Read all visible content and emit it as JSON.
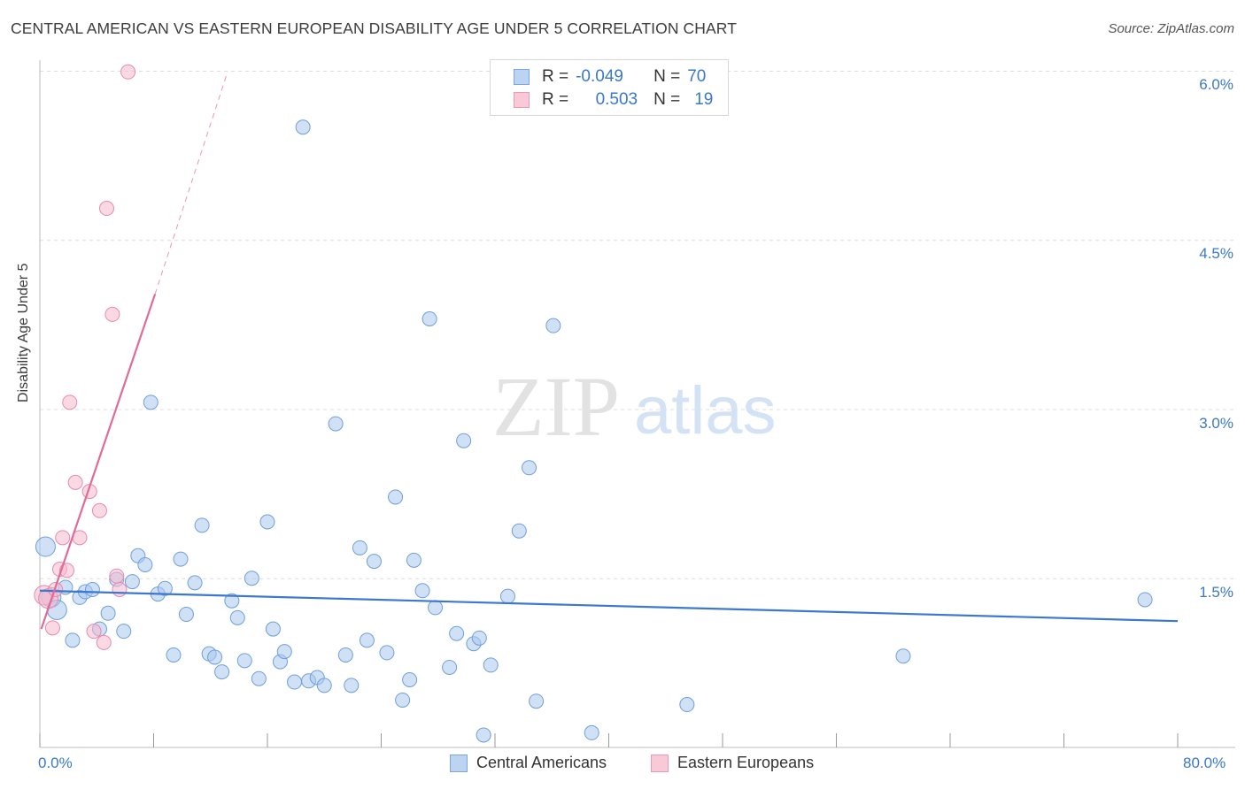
{
  "title": "CENTRAL AMERICAN VS EASTERN EUROPEAN DISABILITY AGE UNDER 5 CORRELATION CHART",
  "source": "Source: ZipAtlas.com",
  "watermark": {
    "zip": "ZIP",
    "atlas": "atlas"
  },
  "legend": {
    "r_label": "R =",
    "n_label": "N =",
    "rows": [
      {
        "r": "-0.049",
        "n": "70"
      },
      {
        "r": "0.503",
        "n": "19"
      }
    ]
  },
  "colors": {
    "blue_fill": "#a9c8ee",
    "blue_stroke": "#6f9fd8",
    "blue_line": "#3c78d0",
    "pink_fill": "#f6b9cd",
    "pink_stroke": "#e88aab",
    "pink_line": "#e06a98",
    "grid": "#dcdcdc",
    "axis_text": "#3a78c9"
  },
  "chart_data": {
    "type": "scatter",
    "title": "CENTRAL AMERICAN VS EASTERN EUROPEAN DISABILITY AGE UNDER 5 CORRELATION CHART",
    "xlabel": "",
    "ylabel": "Disability Age Under 5",
    "xlim": [
      0,
      80
    ],
    "ylim": [
      0,
      6.0
    ],
    "x_tick_labels": [
      "0.0%",
      "80.0%"
    ],
    "y_ticks": [
      1.5,
      3.0,
      4.5,
      6.0
    ],
    "y_tick_labels": [
      "1.5%",
      "3.0%",
      "4.5%",
      "6.0%"
    ],
    "grid": true,
    "legend_position": "bottom",
    "series": [
      {
        "name": "Central Americans",
        "color": "#a9c8ee",
        "r": -0.049,
        "n": 70,
        "trend": {
          "x": [
            0,
            80
          ],
          "y": [
            1.39,
            1.12
          ]
        },
        "points": [
          {
            "x": 0.4,
            "y": 1.78,
            "s": 2
          },
          {
            "x": 0.8,
            "y": 1.33,
            "s": 2
          },
          {
            "x": 1.2,
            "y": 1.22,
            "s": 2
          },
          {
            "x": 1.8,
            "y": 1.42,
            "s": 1
          },
          {
            "x": 2.3,
            "y": 0.95,
            "s": 1
          },
          {
            "x": 2.8,
            "y": 1.33,
            "s": 1
          },
          {
            "x": 3.2,
            "y": 1.38,
            "s": 1
          },
          {
            "x": 3.7,
            "y": 1.4,
            "s": 1
          },
          {
            "x": 4.2,
            "y": 1.05,
            "s": 1
          },
          {
            "x": 4.8,
            "y": 1.19,
            "s": 1
          },
          {
            "x": 5.4,
            "y": 1.49,
            "s": 1
          },
          {
            "x": 5.9,
            "y": 1.03,
            "s": 1
          },
          {
            "x": 6.5,
            "y": 1.47,
            "s": 1
          },
          {
            "x": 6.9,
            "y": 1.7,
            "s": 1
          },
          {
            "x": 7.4,
            "y": 1.62,
            "s": 1
          },
          {
            "x": 7.8,
            "y": 3.06,
            "s": 1
          },
          {
            "x": 8.3,
            "y": 1.36,
            "s": 1
          },
          {
            "x": 8.8,
            "y": 1.41,
            "s": 1
          },
          {
            "x": 9.4,
            "y": 0.82,
            "s": 1
          },
          {
            "x": 9.9,
            "y": 1.67,
            "s": 1
          },
          {
            "x": 10.3,
            "y": 1.18,
            "s": 1
          },
          {
            "x": 10.9,
            "y": 1.46,
            "s": 1
          },
          {
            "x": 11.4,
            "y": 1.97,
            "s": 1
          },
          {
            "x": 11.9,
            "y": 0.83,
            "s": 1
          },
          {
            "x": 12.3,
            "y": 0.8,
            "s": 1
          },
          {
            "x": 12.8,
            "y": 0.67,
            "s": 1
          },
          {
            "x": 13.5,
            "y": 1.3,
            "s": 1
          },
          {
            "x": 13.9,
            "y": 1.15,
            "s": 1
          },
          {
            "x": 14.4,
            "y": 0.77,
            "s": 1
          },
          {
            "x": 14.9,
            "y": 1.5,
            "s": 1
          },
          {
            "x": 15.4,
            "y": 0.61,
            "s": 1
          },
          {
            "x": 16.0,
            "y": 2.0,
            "s": 1
          },
          {
            "x": 16.4,
            "y": 1.05,
            "s": 1
          },
          {
            "x": 16.9,
            "y": 0.76,
            "s": 1
          },
          {
            "x": 17.2,
            "y": 0.85,
            "s": 1
          },
          {
            "x": 17.9,
            "y": 0.58,
            "s": 1
          },
          {
            "x": 18.5,
            "y": 5.5,
            "s": 1
          },
          {
            "x": 18.9,
            "y": 0.59,
            "s": 1
          },
          {
            "x": 19.5,
            "y": 0.62,
            "s": 1
          },
          {
            "x": 20.0,
            "y": 0.55,
            "s": 1
          },
          {
            "x": 20.8,
            "y": 2.87,
            "s": 1
          },
          {
            "x": 21.5,
            "y": 0.82,
            "s": 1
          },
          {
            "x": 21.9,
            "y": 0.55,
            "s": 1
          },
          {
            "x": 22.5,
            "y": 1.77,
            "s": 1
          },
          {
            "x": 23.0,
            "y": 0.95,
            "s": 1
          },
          {
            "x": 23.5,
            "y": 1.65,
            "s": 1
          },
          {
            "x": 24.4,
            "y": 0.84,
            "s": 1
          },
          {
            "x": 25.0,
            "y": 2.22,
            "s": 1
          },
          {
            "x": 25.5,
            "y": 0.42,
            "s": 1
          },
          {
            "x": 26.0,
            "y": 0.6,
            "s": 1
          },
          {
            "x": 26.3,
            "y": 1.66,
            "s": 1
          },
          {
            "x": 26.9,
            "y": 1.39,
            "s": 1
          },
          {
            "x": 27.4,
            "y": 3.8,
            "s": 1
          },
          {
            "x": 27.8,
            "y": 1.24,
            "s": 1
          },
          {
            "x": 28.8,
            "y": 0.71,
            "s": 1
          },
          {
            "x": 29.3,
            "y": 1.01,
            "s": 1
          },
          {
            "x": 29.8,
            "y": 2.72,
            "s": 1
          },
          {
            "x": 30.5,
            "y": 0.92,
            "s": 1
          },
          {
            "x": 30.9,
            "y": 0.97,
            "s": 1
          },
          {
            "x": 31.2,
            "y": 0.11,
            "s": 1
          },
          {
            "x": 31.7,
            "y": 0.73,
            "s": 1
          },
          {
            "x": 32.9,
            "y": 1.34,
            "s": 1
          },
          {
            "x": 33.7,
            "y": 1.92,
            "s": 1
          },
          {
            "x": 34.4,
            "y": 2.48,
            "s": 1
          },
          {
            "x": 34.9,
            "y": 0.41,
            "s": 1
          },
          {
            "x": 36.1,
            "y": 3.74,
            "s": 1
          },
          {
            "x": 38.8,
            "y": 0.13,
            "s": 1
          },
          {
            "x": 45.5,
            "y": 0.38,
            "s": 1
          },
          {
            "x": 60.7,
            "y": 0.81,
            "s": 1
          },
          {
            "x": 77.7,
            "y": 1.31,
            "s": 1
          }
        ]
      },
      {
        "name": "Eastern Europeans",
        "color": "#f6b9cd",
        "r": 0.503,
        "n": 19,
        "trend": {
          "x": [
            0.1,
            8.1
          ],
          "y": [
            1.05,
            4.02
          ]
        },
        "trend_ext": {
          "x": [
            8.1,
            13.2
          ],
          "y": [
            4.02,
            5.99
          ]
        },
        "points": [
          {
            "x": 0.3,
            "y": 1.35,
            "s": 2
          },
          {
            "x": 0.6,
            "y": 1.32,
            "s": 2
          },
          {
            "x": 0.9,
            "y": 1.06,
            "s": 1
          },
          {
            "x": 1.1,
            "y": 1.4,
            "s": 1
          },
          {
            "x": 1.4,
            "y": 1.58,
            "s": 1
          },
          {
            "x": 1.6,
            "y": 1.86,
            "s": 1
          },
          {
            "x": 1.9,
            "y": 1.57,
            "s": 1
          },
          {
            "x": 2.1,
            "y": 3.06,
            "s": 1
          },
          {
            "x": 2.5,
            "y": 2.35,
            "s": 1
          },
          {
            "x": 2.8,
            "y": 1.86,
            "s": 1
          },
          {
            "x": 3.5,
            "y": 2.27,
            "s": 1
          },
          {
            "x": 3.8,
            "y": 1.03,
            "s": 1
          },
          {
            "x": 4.2,
            "y": 2.1,
            "s": 1
          },
          {
            "x": 4.5,
            "y": 0.93,
            "s": 1
          },
          {
            "x": 4.7,
            "y": 4.78,
            "s": 1
          },
          {
            "x": 5.1,
            "y": 3.84,
            "s": 1
          },
          {
            "x": 5.4,
            "y": 1.52,
            "s": 1
          },
          {
            "x": 5.6,
            "y": 1.4,
            "s": 1
          },
          {
            "x": 6.2,
            "y": 5.99,
            "s": 1
          }
        ]
      }
    ]
  }
}
